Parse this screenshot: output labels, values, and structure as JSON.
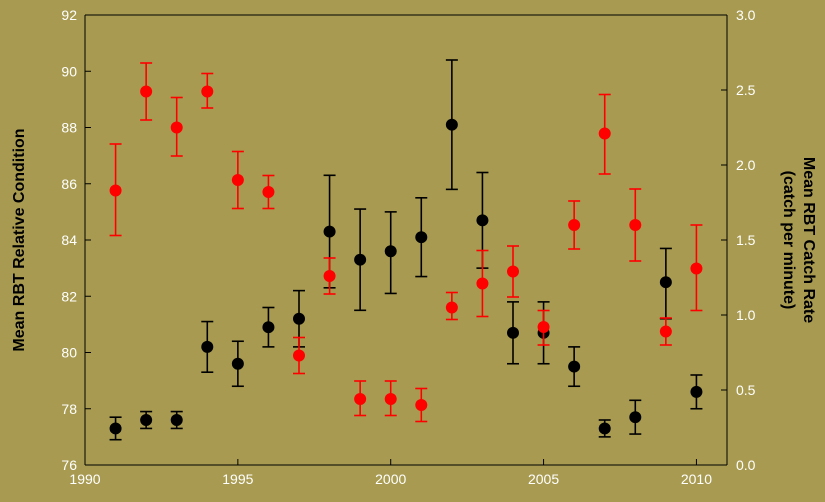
{
  "chart_data": {
    "type": "scatter",
    "title": "",
    "xlabel": "",
    "ylabel": "Mean RBT Relative Condition",
    "y2label": [
      "Mean RBT Catch Rate",
      "(catch per minute)"
    ],
    "xlim": [
      1990,
      2011
    ],
    "ylim": [
      76,
      92
    ],
    "y2lim": [
      0.0,
      3.0
    ],
    "xticks": [
      "1990",
      "1995",
      "2000",
      "2005",
      "2010"
    ],
    "yticks": [
      "76",
      "78",
      "80",
      "82",
      "84",
      "86",
      "88",
      "90",
      "92"
    ],
    "y2ticks": [
      "0.0",
      "0.5",
      "1.0",
      "1.5",
      "2.0",
      "2.5",
      "3.0"
    ],
    "grid": false,
    "legend": "none",
    "background_color": "#a89b51",
    "series": [
      {
        "axis": "left",
        "color": "#000000",
        "points": [
          {
            "x": 1991,
            "y": 77.3,
            "low": 76.9,
            "high": 77.7
          },
          {
            "x": 1992,
            "y": 77.6,
            "low": 77.3,
            "high": 77.9
          },
          {
            "x": 1993,
            "y": 77.6,
            "low": 77.3,
            "high": 77.9
          },
          {
            "x": 1994,
            "y": 80.2,
            "low": 79.3,
            "high": 81.1
          },
          {
            "x": 1995,
            "y": 79.6,
            "low": 78.8,
            "high": 80.4
          },
          {
            "x": 1996,
            "y": 80.9,
            "low": 80.2,
            "high": 81.6
          },
          {
            "x": 1997,
            "y": 81.2,
            "low": 80.2,
            "high": 82.2
          },
          {
            "x": 1998,
            "y": 84.3,
            "low": 82.3,
            "high": 86.3
          },
          {
            "x": 1999,
            "y": 83.3,
            "low": 81.5,
            "high": 85.1
          },
          {
            "x": 2000,
            "y": 83.6,
            "low": 82.1,
            "high": 85.0
          },
          {
            "x": 2001,
            "y": 84.1,
            "low": 82.7,
            "high": 85.5
          },
          {
            "x": 2002,
            "y": 88.1,
            "low": 85.8,
            "high": 90.4
          },
          {
            "x": 2003,
            "y": 84.7,
            "low": 83.0,
            "high": 86.4
          },
          {
            "x": 2004,
            "y": 80.7,
            "low": 79.6,
            "high": 81.8
          },
          {
            "x": 2005,
            "y": 80.7,
            "low": 79.6,
            "high": 81.8
          },
          {
            "x": 2006,
            "y": 79.5,
            "low": 78.8,
            "high": 80.2
          },
          {
            "x": 2007,
            "y": 77.3,
            "low": 77.0,
            "high": 77.6
          },
          {
            "x": 2008,
            "y": 77.7,
            "low": 77.1,
            "high": 78.3
          },
          {
            "x": 2009,
            "y": 82.5,
            "low": 81.2,
            "high": 83.7
          },
          {
            "x": 2010,
            "y": 78.6,
            "low": 78.0,
            "high": 79.2
          }
        ]
      },
      {
        "axis": "right",
        "color": "#ff0000",
        "points": [
          {
            "x": 1991,
            "y": 1.83,
            "low": 1.53,
            "high": 2.14
          },
          {
            "x": 1992,
            "y": 2.49,
            "low": 2.3,
            "high": 2.68
          },
          {
            "x": 1993,
            "y": 2.25,
            "low": 2.06,
            "high": 2.45
          },
          {
            "x": 1994,
            "y": 2.49,
            "low": 2.38,
            "high": 2.61
          },
          {
            "x": 1995,
            "y": 1.9,
            "low": 1.71,
            "high": 2.09
          },
          {
            "x": 1996,
            "y": 1.82,
            "low": 1.71,
            "high": 1.93
          },
          {
            "x": 1997,
            "y": 0.73,
            "low": 0.61,
            "high": 0.85
          },
          {
            "x": 1998,
            "y": 1.26,
            "low": 1.14,
            "high": 1.38
          },
          {
            "x": 1999,
            "y": 0.44,
            "low": 0.33,
            "high": 0.56
          },
          {
            "x": 2000,
            "y": 0.44,
            "low": 0.33,
            "high": 0.56
          },
          {
            "x": 2001,
            "y": 0.4,
            "low": 0.29,
            "high": 0.51
          },
          {
            "x": 2002,
            "y": 1.05,
            "low": 0.97,
            "high": 1.15
          },
          {
            "x": 2003,
            "y": 1.21,
            "low": 0.99,
            "high": 1.43
          },
          {
            "x": 2004,
            "y": 1.29,
            "low": 1.12,
            "high": 1.46
          },
          {
            "x": 2005,
            "y": 0.92,
            "low": 0.8,
            "high": 1.03
          },
          {
            "x": 2006,
            "y": 1.6,
            "low": 1.44,
            "high": 1.76
          },
          {
            "x": 2007,
            "y": 2.21,
            "low": 1.94,
            "high": 2.47
          },
          {
            "x": 2008,
            "y": 1.6,
            "low": 1.36,
            "high": 1.84
          },
          {
            "x": 2009,
            "y": 0.89,
            "low": 0.8,
            "high": 0.98
          },
          {
            "x": 2010,
            "y": 1.31,
            "low": 1.03,
            "high": 1.6
          }
        ]
      }
    ]
  }
}
